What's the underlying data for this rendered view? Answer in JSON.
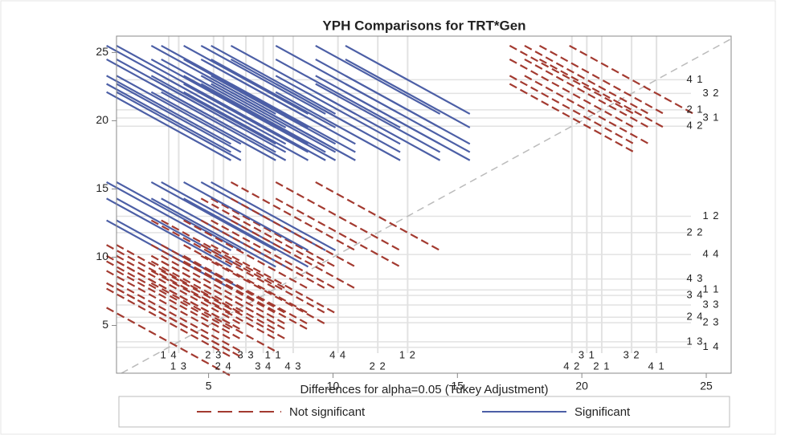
{
  "chart_data": {
    "type": "diffogram",
    "title": "YPH Comparisons for TRT*Gen",
    "levels": [
      {
        "label": "1 1",
        "mean": 7.6
      },
      {
        "label": "1 2",
        "mean": 13.0
      },
      {
        "label": "1 3",
        "mean": 3.8
      },
      {
        "label": "1 4",
        "mean": 3.4
      },
      {
        "label": "2 1",
        "mean": 20.8
      },
      {
        "label": "2 2",
        "mean": 11.8
      },
      {
        "label": "2 3",
        "mean": 5.2
      },
      {
        "label": "2 4",
        "mean": 5.6
      },
      {
        "label": "3 1",
        "mean": 20.2
      },
      {
        "label": "3 2",
        "mean": 22.0
      },
      {
        "label": "3 3",
        "mean": 6.5
      },
      {
        "label": "3 4",
        "mean": 7.2
      },
      {
        "label": "4 1",
        "mean": 23.0
      },
      {
        "label": "4 2",
        "mean": 19.6
      },
      {
        "label": "4 3",
        "mean": 8.4
      },
      {
        "label": "4 4",
        "mean": 10.2
      }
    ],
    "ci_width": 5,
    "xlim": [
      1.3,
      26
    ],
    "ylim": [
      1.5,
      26.2
    ],
    "xticks": [
      5,
      10,
      15,
      20,
      25
    ],
    "yticks": [
      5,
      10,
      15,
      20,
      25
    ],
    "legend": {
      "title": "Differences for alpha=0.05 (Tukey Adjustment)",
      "entries": [
        {
          "name": "Not significant",
          "color": "#a33a30"
        },
        {
          "name": "Significant",
          "color": "#4c5fa6"
        }
      ]
    }
  }
}
